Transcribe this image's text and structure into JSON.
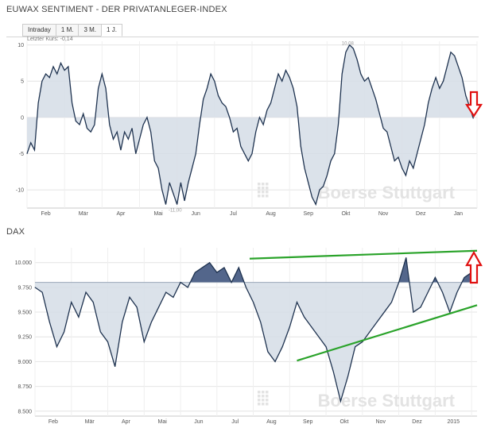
{
  "top_panel": {
    "title": "EUWAX SENTIMENT - DER PRIVATANLEGER-INDEX",
    "tabs": [
      {
        "label": "Intraday",
        "active": false
      },
      {
        "label": "1 M.",
        "active": false
      },
      {
        "label": "3 M.",
        "active": false
      },
      {
        "label": "1 J.",
        "active": true
      }
    ],
    "last_price": "Letzter Kurs: -0,14",
    "watermark": "Boerse Stuttgart",
    "annotations": [
      "10,08",
      "-11,00"
    ]
  },
  "bottom_panel": {
    "title": "DAX",
    "watermark": "Boerse Stuttgart"
  },
  "colors": {
    "line": "#1f3350",
    "fill_light": "#d5dde6",
    "fill_dark": "#4a5e85",
    "trend_green": "#2aa32a",
    "arrow_red": "#e01010",
    "grid": "#e4e4e4"
  },
  "chart_data": [
    {
      "type": "area",
      "title": "EUWAX SENTIMENT - DER PRIVATANLEGER-INDEX",
      "baseline": 0,
      "ylim": [
        -12.5,
        10.5
      ],
      "yticks": [
        10,
        5,
        0,
        -5,
        -10
      ],
      "xlim": [
        0,
        12
      ],
      "xtick_labels": [
        "Feb",
        "Mär",
        "Apr",
        "Mai",
        "Jun",
        "Jul",
        "Aug",
        "Sep",
        "Okt",
        "Nov",
        "Dez",
        "Jan"
      ],
      "x": [
        0.0,
        0.1,
        0.2,
        0.3,
        0.4,
        0.5,
        0.6,
        0.7,
        0.8,
        0.9,
        1.0,
        1.1,
        1.2,
        1.3,
        1.4,
        1.5,
        1.6,
        1.7,
        1.8,
        1.9,
        2.0,
        2.1,
        2.2,
        2.3,
        2.4,
        2.5,
        2.6,
        2.7,
        2.8,
        2.9,
        3.0,
        3.1,
        3.2,
        3.3,
        3.4,
        3.5,
        3.6,
        3.7,
        3.8,
        3.9,
        4.0,
        4.1,
        4.2,
        4.3,
        4.4,
        4.5,
        4.6,
        4.7,
        4.8,
        4.9,
        5.0,
        5.1,
        5.2,
        5.3,
        5.4,
        5.5,
        5.6,
        5.7,
        5.8,
        5.9,
        6.0,
        6.1,
        6.2,
        6.3,
        6.4,
        6.5,
        6.6,
        6.7,
        6.8,
        6.9,
        7.0,
        7.1,
        7.2,
        7.3,
        7.4,
        7.5,
        7.6,
        7.7,
        7.8,
        7.9,
        8.0,
        8.1,
        8.2,
        8.3,
        8.4,
        8.5,
        8.6,
        8.7,
        8.8,
        8.9,
        9.0,
        9.1,
        9.2,
        9.3,
        9.4,
        9.5,
        9.6,
        9.7,
        9.8,
        9.9,
        10.0,
        10.1,
        10.2,
        10.3,
        10.4,
        10.5,
        10.6,
        10.7,
        10.8,
        10.9,
        11.0,
        11.1,
        11.2,
        11.3,
        11.4,
        11.5,
        11.6,
        11.7,
        11.8,
        11.9
      ],
      "y": [
        -5.0,
        -3.5,
        -4.5,
        2.0,
        5.0,
        6.0,
        5.5,
        7.0,
        6.0,
        7.5,
        6.5,
        7.0,
        2.0,
        -0.5,
        -1.0,
        0.5,
        -1.5,
        -2.0,
        -1.0,
        4.0,
        6.0,
        4.0,
        -1.0,
        -3.0,
        -2.0,
        -4.5,
        -2.0,
        -3.0,
        -1.5,
        -5.0,
        -3.0,
        -1.0,
        0.0,
        -2.0,
        -6.0,
        -7.0,
        -10.0,
        -12.0,
        -9.0,
        -10.5,
        -12.0,
        -9.0,
        -11.5,
        -9.0,
        -7.0,
        -5.0,
        -1.0,
        2.5,
        4.0,
        6.0,
        5.0,
        3.0,
        2.0,
        1.5,
        0.0,
        -2.0,
        -1.5,
        -4.0,
        -5.0,
        -6.0,
        -5.0,
        -2.0,
        0.0,
        -1.0,
        1.0,
        2.0,
        4.0,
        6.0,
        5.0,
        6.5,
        5.5,
        4.0,
        1.5,
        -4.0,
        -7.0,
        -9.0,
        -11.0,
        -12.0,
        -10.0,
        -9.5,
        -8.0,
        -6.0,
        -5.0,
        -1.0,
        6.0,
        9.0,
        10.0,
        9.5,
        8.0,
        6.0,
        5.0,
        5.5,
        4.0,
        2.5,
        0.5,
        -1.5,
        -2.0,
        -4.0,
        -6.0,
        -5.5,
        -7.0,
        -8.0,
        -6.0,
        -7.0,
        -5.0,
        -3.0,
        -1.0,
        2.0,
        4.0,
        5.5,
        4.0,
        5.0,
        7.0,
        9.0,
        8.5,
        7.0,
        5.5,
        3.0,
        1.5,
        -0.14
      ]
    },
    {
      "type": "area",
      "title": "DAX",
      "baseline": 9800,
      "ylim": [
        8450,
        10150
      ],
      "yticks": [
        10000,
        9750,
        9500,
        9250,
        9000,
        8750,
        8500
      ],
      "ytick_labels": [
        "10.000",
        "9.750",
        "9.500",
        "9.250",
        "9.000",
        "8.750",
        "8.500"
      ],
      "xlim": [
        0,
        12.15
      ],
      "xtick_labels": [
        "Feb",
        "Mär",
        "Apr",
        "Mai",
        "Jun",
        "Jul",
        "Aug",
        "Sep",
        "Okt",
        "Nov",
        "Dez",
        "2015"
      ],
      "x": [
        0.0,
        0.2,
        0.4,
        0.6,
        0.8,
        1.0,
        1.2,
        1.4,
        1.6,
        1.8,
        2.0,
        2.2,
        2.4,
        2.6,
        2.8,
        3.0,
        3.2,
        3.4,
        3.6,
        3.8,
        4.0,
        4.2,
        4.4,
        4.6,
        4.8,
        5.0,
        5.2,
        5.4,
        5.6,
        5.8,
        6.0,
        6.2,
        6.4,
        6.6,
        6.8,
        7.0,
        7.2,
        7.4,
        7.6,
        7.8,
        8.0,
        8.2,
        8.4,
        8.6,
        8.8,
        9.0,
        9.2,
        9.4,
        9.6,
        9.8,
        10.0,
        10.2,
        10.4,
        10.6,
        10.8,
        11.0,
        11.2,
        11.4,
        11.6,
        11.8,
        12.0,
        12.15
      ],
      "y": [
        9750,
        9700,
        9400,
        9150,
        9300,
        9600,
        9450,
        9700,
        9600,
        9300,
        9200,
        8950,
        9400,
        9650,
        9550,
        9200,
        9400,
        9550,
        9700,
        9650,
        9800,
        9750,
        9900,
        9950,
        10000,
        9900,
        9950,
        9800,
        9950,
        9750,
        9600,
        9400,
        9100,
        9000,
        9150,
        9350,
        9600,
        9450,
        9350,
        9250,
        9150,
        8900,
        8600,
        8850,
        9150,
        9200,
        9300,
        9400,
        9500,
        9600,
        9800,
        10050,
        9500,
        9550,
        9700,
        9850,
        9700,
        9500,
        9700,
        9850,
        9900,
        10000
      ],
      "trend_lines": [
        {
          "from": [
            5.9,
            10040
          ],
          "to": [
            12.15,
            10120
          ]
        },
        {
          "from": [
            7.2,
            9010
          ],
          "to": [
            12.15,
            9570
          ]
        }
      ]
    }
  ]
}
